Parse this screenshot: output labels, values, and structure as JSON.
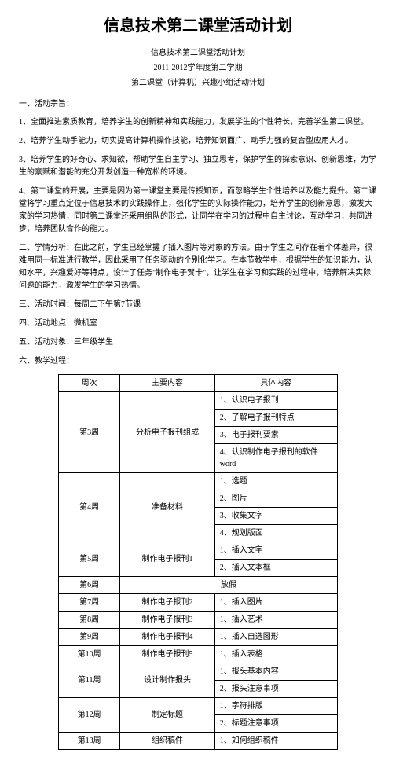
{
  "title": "信息技术第二课堂活动计划",
  "subtitles": [
    "信息技术第二课堂活动计划",
    "2011-2012学年度第二学期",
    "第二课堂（计算机）兴趣小组活动计划"
  ],
  "section1_header": "一、活动宗旨：",
  "section1_items": [
    "1、全面推进素质教育，培养学生的创新精神和实践能力，发展学生的个性特长，完善学生第二课堂。",
    "2、培养学生动手能力，切实提高计算机操作技能，培养知识面广、动手力强的复合型应用人才。",
    "3、培养学生的好奇心、求知欲，帮助学生自主学习、独立思考，保护学生的探索意识、创新思维，为学生的禀赋和潜能的充分开发创造一种宽松的环境。",
    "4、第二课堂的开展，主要是因为第一课堂主要是传授知识，而忽略学生个性培养以及能力提升。第二课堂将学习重点定位于信息技术的实践操作上，强化学生的实际操作能力，培养学生的创新意思，激发大家的学习热情，同时第二课堂还采用组队的形式，让同学在学习的过程中自主讨论，互动学习，共同进步，培养团队合作的能力。"
  ],
  "section2": "二、学情分析：在此之前，学生已经掌握了插入图片等对象的方法。由于学生之间存在着个体差异，很难用同一标准进行教学，因此采用了任务驱动的个别化学习。在本节教学中，根据学生的知识能力，认知水平，兴趣爱好等特点，设计了任务\"制作电子贺卡\"，让学生在学习和实践的过程中，培养解决实际问题的能力，激发学生的学习热情。",
  "section3": "三、活动时间：每周二下午第7节课",
  "section4": "四、活动地点：微机室",
  "section5": "五、活动对象：三年级学生",
  "section6": "六、教学过程：",
  "table": {
    "headers": [
      "周次",
      "主要内容",
      "具体内容"
    ],
    "rows": [
      {
        "week": "第3周",
        "main": "分析电子报刊组成",
        "details": [
          "1、认识电子报刊",
          "2、了解电子报刊特点",
          "3、电子报刊要素",
          "4、认识制作电子报刊的软件word"
        ]
      },
      {
        "week": "第4周",
        "main": "准备材料",
        "details": [
          "1、选题",
          "2、图片",
          "3、收集文字",
          "4、规划版面"
        ]
      },
      {
        "week": "第5周",
        "main": "制作电子报刊1",
        "details": [
          "1、插入文字",
          "2、插入文本框"
        ]
      },
      {
        "week": "第6周",
        "main": "",
        "details": [
          "放假"
        ],
        "single": true
      },
      {
        "week": "第7周",
        "main": "制作电子报刊2",
        "details": [
          "1、插入图片"
        ]
      },
      {
        "week": "第8周",
        "main": "制作电子报刊3",
        "details": [
          "1、插入艺术"
        ]
      },
      {
        "week": "第9周",
        "main": "制作电子报刊4",
        "details": [
          "1、插入自选图形"
        ]
      },
      {
        "week": "第10周",
        "main": "制作电子报刊5",
        "details": [
          "1、插入表格"
        ]
      },
      {
        "week": "第11周",
        "main": "设计制作报头",
        "details": [
          "1、报头基本内容",
          "2、报头注意事项"
        ]
      },
      {
        "week": "第12周",
        "main": "制定标题",
        "details": [
          "1、字符排版",
          "2、标题注意事项"
        ]
      },
      {
        "week": "第13周",
        "main": "组织稿件",
        "details": [
          "1、如何组织稿件"
        ]
      }
    ]
  }
}
